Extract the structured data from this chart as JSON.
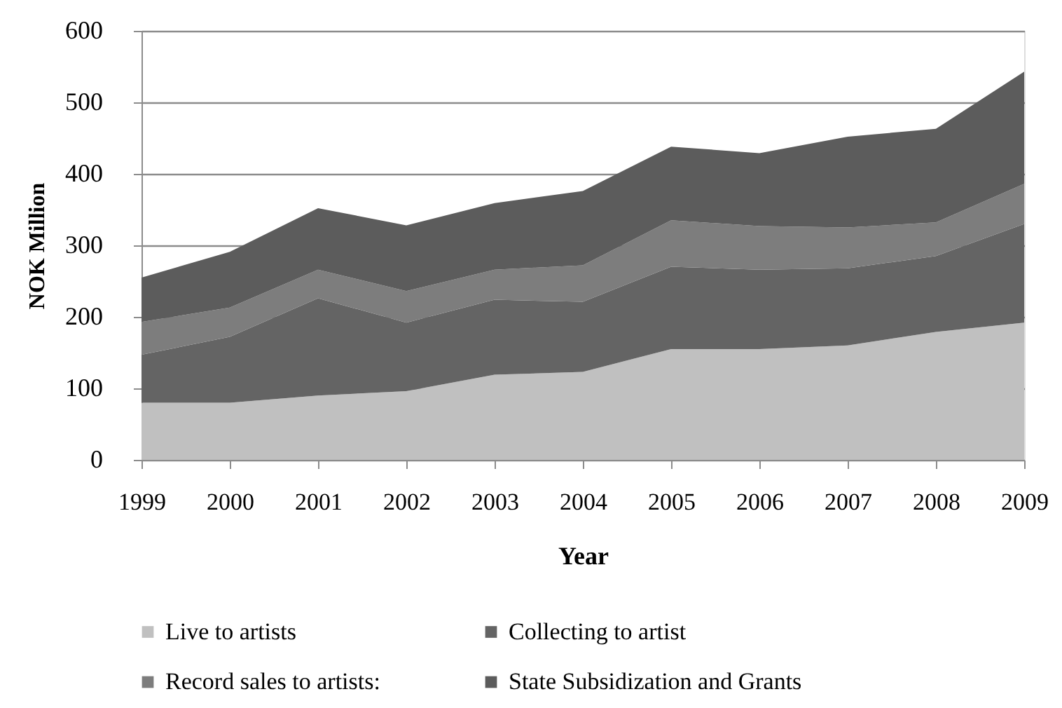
{
  "chart_data": {
    "type": "area",
    "stacked": true,
    "xlabel": "Year",
    "ylabel": "NOK Million",
    "categories": [
      "1999",
      "2000",
      "2001",
      "2002",
      "2003",
      "2004",
      "2005",
      "2006",
      "2007",
      "2008",
      "2009"
    ],
    "series": [
      {
        "name": "Live to artists",
        "color": "#c0c0c0",
        "values": [
          80,
          80,
          90,
          96,
          119,
          123,
          155,
          155,
          160,
          179,
          192
        ]
      },
      {
        "name": "Collecting to artist",
        "color": "#646464",
        "values": [
          67,
          92,
          136,
          96,
          105,
          98,
          115,
          111,
          108,
          106,
          138
        ]
      },
      {
        "name": "Record sales to artists:",
        "color": "#7d7d7d",
        "values": [
          46,
          41,
          40,
          44,
          42,
          51,
          65,
          61,
          57,
          47,
          56
        ]
      },
      {
        "name": "State Subsidization and Grants",
        "color": "#5c5c5c",
        "values": [
          62,
          78,
          86,
          92,
          93,
          104,
          103,
          102,
          127,
          131,
          157
        ]
      }
    ],
    "ylim": [
      0,
      600
    ],
    "yticks": [
      0,
      100,
      200,
      300,
      400,
      500,
      600
    ],
    "grid": "y",
    "legend": "bottom"
  }
}
